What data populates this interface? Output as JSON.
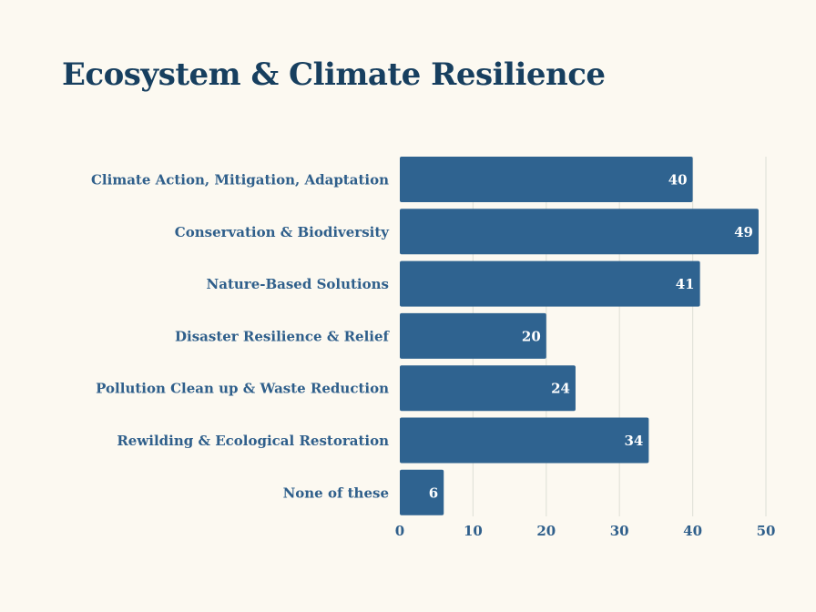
{
  "chart_data": {
    "type": "bar",
    "orientation": "horizontal",
    "title": "Ecosystem & Climate Resilience",
    "xlabel": "",
    "ylabel": "",
    "categories": [
      "Climate Action, Mitigation, Adaptation",
      "Conservation & Biodiversity",
      "Nature-Based Solutions",
      "Disaster Resilience & Relief",
      "Pollution Clean up & Waste Reduction",
      "Rewilding & Ecological Restoration",
      "None of these"
    ],
    "values": [
      40,
      49,
      41,
      20,
      24,
      34,
      6
    ],
    "xlim": [
      0,
      50
    ],
    "xticks": [
      0,
      10,
      20,
      30,
      40,
      50
    ],
    "grid": "vertical",
    "legend": "none",
    "bar_color": "#2f6390",
    "grid_color": "#e2e3da",
    "data_labels": "inside-end"
  }
}
